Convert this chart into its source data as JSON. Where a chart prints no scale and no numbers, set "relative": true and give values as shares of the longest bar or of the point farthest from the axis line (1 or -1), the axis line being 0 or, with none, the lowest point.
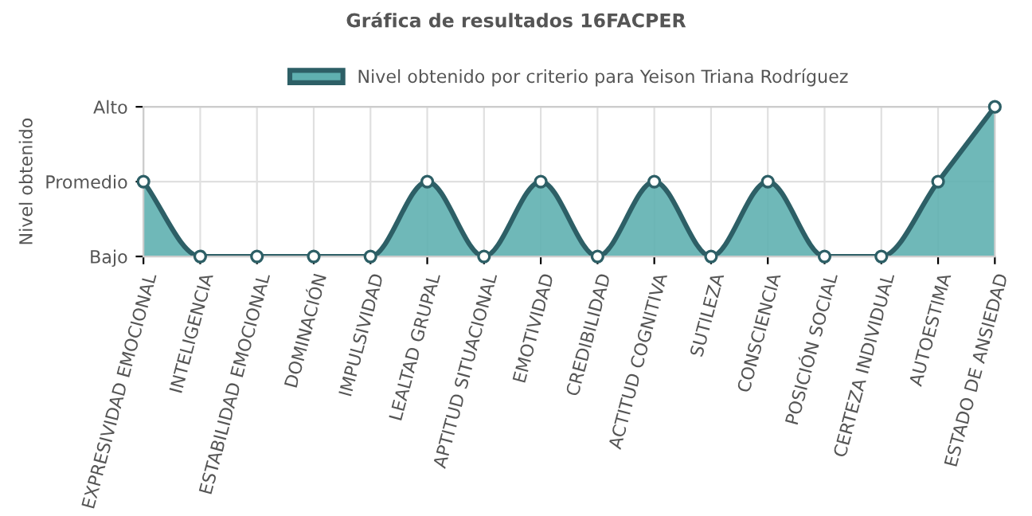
{
  "chart_data": {
    "type": "area",
    "title": "Gráfica de resultados 16FACPER",
    "ylabel": "Nivel obtenido",
    "categories": [
      "EXPRESIVIDAD EMOCIONAL",
      "INTELIGENCIA",
      "ESTABILIDAD EMOCIONAL",
      "DOMINACIÓN",
      "IMPULSIVIDAD",
      "LEALTAD GRUPAL",
      "APTITUD SITUACIONAL",
      "EMOTIVIDAD",
      "CREDIBILIDAD",
      "ACTITUD COGNITIVA",
      "SUTILEZA",
      "CONSCIENCIA",
      "POSICIÓN SOCIAL",
      "CERTEZA INDIVIDUAL",
      "AUTOESTIMA",
      "ESTADO DE ANSIEDAD"
    ],
    "series": [
      {
        "name": "Nivel obtenido por criterio para Yeison Triana Rodríguez",
        "color": "#2d5f66",
        "values": [
          0.5,
          0,
          0,
          0,
          0,
          0.5,
          0,
          0.5,
          0,
          0.5,
          0,
          0.5,
          0,
          0,
          0.5,
          1
        ]
      }
    ],
    "relative": true,
    "y_categories": [
      "Alto",
      "Promedio",
      "Bajo"
    ],
    "grid": true,
    "legend": "top",
    "marker": "circle",
    "line_style": "solid"
  }
}
